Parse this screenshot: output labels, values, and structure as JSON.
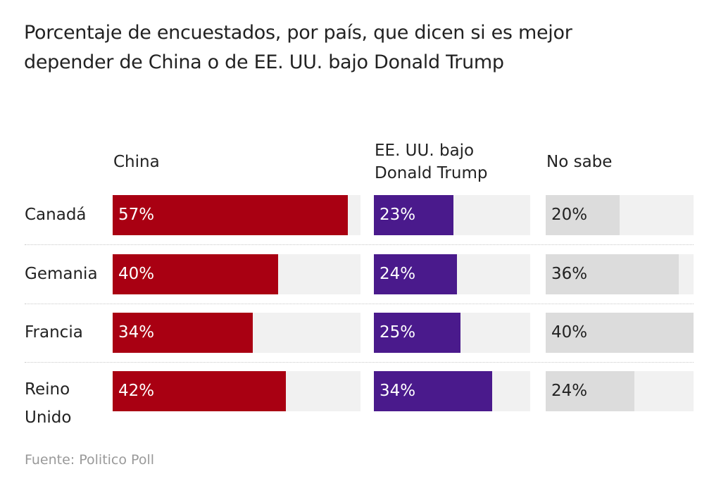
{
  "chart_data": {
    "type": "bar",
    "title": "Porcentaje de encuestados, por país, que dicen si es mejor depender de China o de EE. UU. bajo Donald Trump",
    "categories": [
      "Canadá",
      "Gemania",
      "Francia",
      "Reino Unido"
    ],
    "series": [
      {
        "name": "China",
        "values": [
          57,
          40,
          34,
          42
        ],
        "labels": [
          "57%",
          "40%",
          "34%",
          "42%"
        ],
        "color": "#a90012"
      },
      {
        "name": "EE. UU. bajo Donald Trump",
        "values": [
          23,
          24,
          25,
          34
        ],
        "labels": [
          "23%",
          "24%",
          "25%",
          "34%"
        ],
        "color": "#4a1a8c"
      },
      {
        "name": "No sabe",
        "values": [
          20,
          36,
          40,
          24
        ],
        "labels": [
          "20%",
          "36%",
          "40%",
          "24%"
        ],
        "color": "#dcdcdc"
      }
    ],
    "unit": "%",
    "source": "Fuente: Politico Poll"
  }
}
